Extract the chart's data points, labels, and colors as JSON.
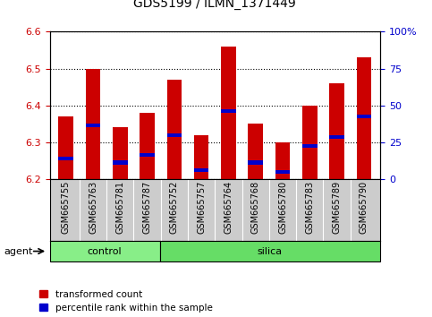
{
  "title": "GDS5199 / ILMN_1371449",
  "samples": [
    "GSM665755",
    "GSM665763",
    "GSM665781",
    "GSM665787",
    "GSM665752",
    "GSM665757",
    "GSM665764",
    "GSM665768",
    "GSM665780",
    "GSM665783",
    "GSM665789",
    "GSM665790"
  ],
  "groups": [
    "control",
    "control",
    "control",
    "control",
    "silica",
    "silica",
    "silica",
    "silica",
    "silica",
    "silica",
    "silica",
    "silica"
  ],
  "transformed_counts": [
    6.37,
    6.5,
    6.34,
    6.38,
    6.47,
    6.32,
    6.56,
    6.35,
    6.3,
    6.4,
    6.46,
    6.53
  ],
  "percentile_ranks": [
    6.255,
    6.345,
    6.245,
    6.265,
    6.32,
    6.225,
    6.385,
    6.245,
    6.22,
    6.29,
    6.315,
    6.37
  ],
  "ymin": 6.2,
  "ymax": 6.6,
  "y_ticks": [
    6.2,
    6.3,
    6.4,
    6.5,
    6.6
  ],
  "right_yticks": [
    0,
    25,
    50,
    75,
    100
  ],
  "bar_color": "#cc0000",
  "percentile_color": "#0000cc",
  "control_color": "#88ee88",
  "silica_color": "#66dd66",
  "bg_color": "#cccccc",
  "plot_bg": "#ffffff",
  "grid_color": "#000000",
  "group_label_control": "control",
  "group_label_silica": "silica",
  "agent_label": "agent",
  "legend_tc": "transformed count",
  "legend_pr": "percentile rank within the sample",
  "bar_width": 0.55,
  "n_control": 4,
  "n_silica": 8
}
